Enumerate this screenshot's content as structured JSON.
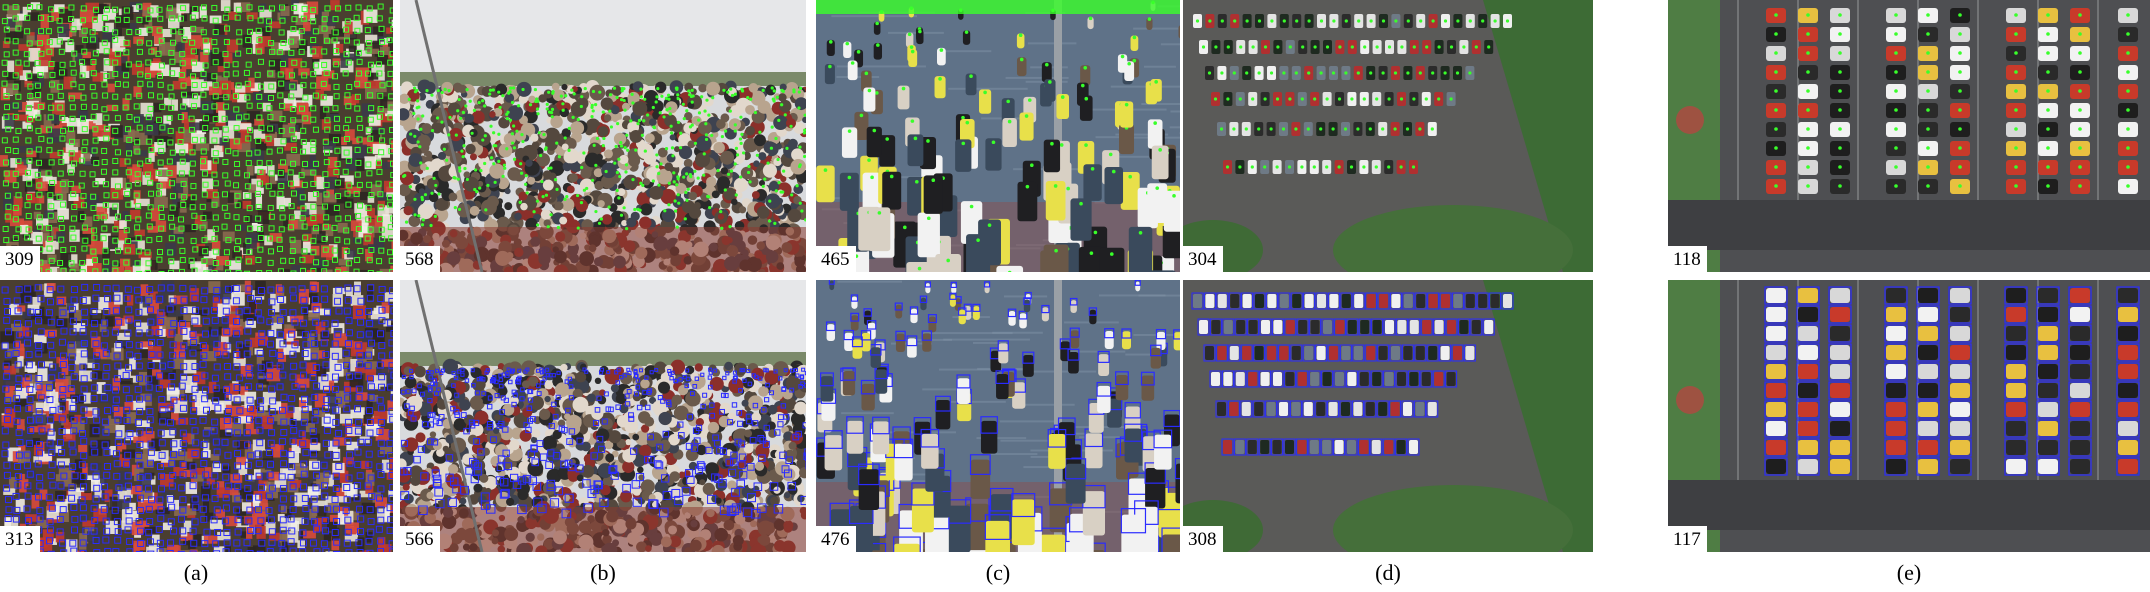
{
  "columns": [
    {
      "caption": "(a)",
      "top_count": "309",
      "bottom_count": "313",
      "scene": "stadium-crowd"
    },
    {
      "caption": "(b)",
      "top_count": "568",
      "bottom_count": "566",
      "scene": "outdoor-crowd"
    },
    {
      "caption": "(c)",
      "top_count": "465",
      "bottom_count": "476",
      "scene": "street-pedestrians"
    },
    {
      "caption": "(d)",
      "top_count": "304",
      "bottom_count": "308",
      "scene": "parking-lot"
    },
    {
      "caption": "(e)",
      "top_count": "118",
      "bottom_count": "117",
      "scene": "aerial-parking"
    }
  ],
  "colors": {
    "point_annotation": "#39ff2a",
    "box_annotation": "#2a2bff",
    "count_label_bg": "#ffffff"
  },
  "icons": {
    "point_marker": "green-point-marker",
    "box_marker": "blue-bounding-box"
  }
}
